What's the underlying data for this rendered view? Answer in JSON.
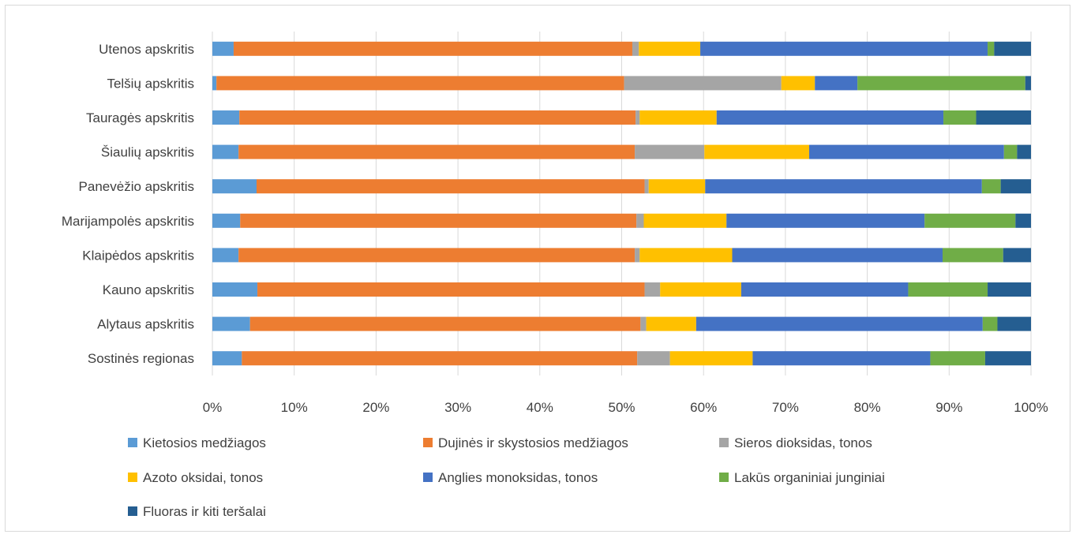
{
  "chart_data": {
    "type": "bar",
    "orientation": "horizontal",
    "stacked": "percent",
    "categories": [
      "Utenos apskritis",
      "Telšių apskritis",
      "Tauragės apskritis",
      "Šiaulių apskritis",
      "Panevėžio apskritis",
      "Marijampolės apskritis",
      "Klaipėdos apskritis",
      "Kauno apskritis",
      "Alytaus apskritis",
      "Sostinės regionas"
    ],
    "x_ticks": [
      "0%",
      "10%",
      "20%",
      "30%",
      "40%",
      "50%",
      "60%",
      "70%",
      "80%",
      "90%",
      "100%"
    ],
    "xlim": [
      0,
      100
    ],
    "grid": true,
    "legend_position": "bottom",
    "series": [
      {
        "name": "Kietosios medžiagos",
        "color": "#5B9BD5",
        "values": [
          2.6,
          0.5,
          3.3,
          3.2,
          5.4,
          3.4,
          3.2,
          5.5,
          4.6,
          3.6
        ]
      },
      {
        "name": "Dujinės ir skystosios medžiagos",
        "color": "#ED7D31",
        "values": [
          48.7,
          49.8,
          48.4,
          48.4,
          47.4,
          48.4,
          48.4,
          47.3,
          47.7,
          48.3
        ]
      },
      {
        "name": "Sieros dioksidas, tonos",
        "color": "#A5A5A5",
        "values": [
          0.8,
          19.2,
          0.5,
          8.5,
          0.5,
          0.9,
          0.6,
          1.9,
          0.7,
          4.0
        ]
      },
      {
        "name": "Azoto oksidai, tonos",
        "color": "#FFC000",
        "values": [
          7.5,
          4.1,
          9.4,
          12.8,
          6.9,
          10.1,
          11.3,
          9.9,
          6.1,
          10.1
        ]
      },
      {
        "name": "Anglies monoksidas, tonos",
        "color": "#4472C4",
        "values": [
          35.1,
          5.2,
          27.7,
          23.8,
          33.8,
          24.2,
          25.7,
          20.4,
          35.0,
          21.7
        ]
      },
      {
        "name": "Lakūs organiniai junginiai",
        "color": "#70AD47",
        "values": [
          0.8,
          20.5,
          4.0,
          1.6,
          2.3,
          11.1,
          7.4,
          9.7,
          1.8,
          6.7
        ]
      },
      {
        "name": "Fluoras ir kiti teršalai",
        "color": "#255E91",
        "values": [
          4.5,
          0.7,
          6.7,
          1.7,
          3.7,
          1.9,
          3.4,
          5.3,
          4.1,
          5.6
        ]
      }
    ]
  }
}
